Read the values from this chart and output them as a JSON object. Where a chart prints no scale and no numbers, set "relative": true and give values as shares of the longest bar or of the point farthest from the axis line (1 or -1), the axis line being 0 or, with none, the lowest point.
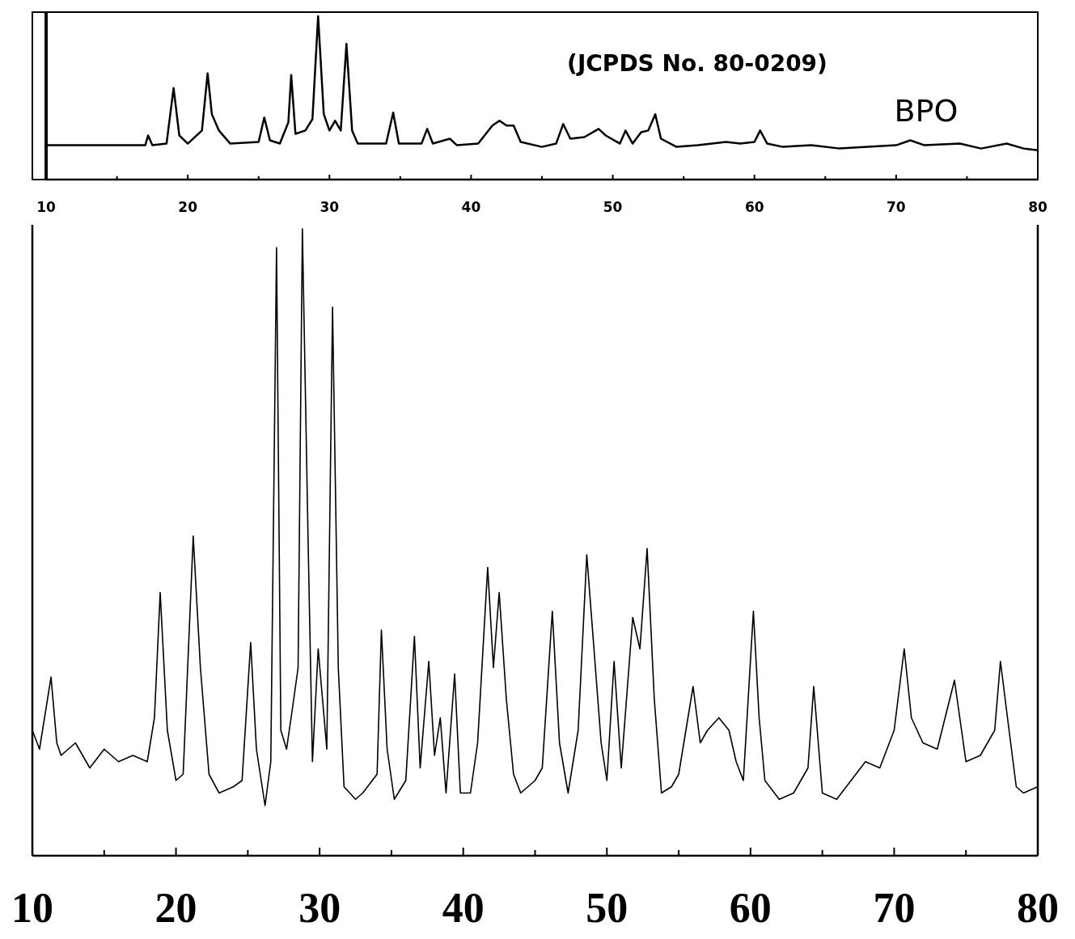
{
  "chart_data": [
    {
      "type": "line",
      "relative": true,
      "annotations": [
        "(JCPDS No. 80-0209)",
        "BPO"
      ],
      "xlim": [
        10,
        80
      ],
      "xticks": [
        10,
        {
          "value": 15,
          "label": null
        },
        20,
        {
          "value": 25,
          "label": null
        },
        30,
        {
          "value": 35,
          "label": null
        },
        40,
        {
          "value": 45,
          "label": null
        },
        50,
        {
          "value": 55,
          "label": null
        },
        60,
        {
          "value": 65,
          "label": null
        },
        70,
        {
          "value": 75,
          "label": null
        },
        80
      ],
      "tick_labels": "x",
      "grid": false,
      "marker": "none",
      "line_style": "solid",
      "series": [
        {
          "color": "#000000",
          "x": [
            10,
            17,
            17.2,
            17.5,
            18.5,
            19.0,
            19.4,
            20,
            21,
            21.4,
            21.7,
            22.2,
            23,
            25,
            25.4,
            25.8,
            26.5,
            27.1,
            27.3,
            27.6,
            28.3,
            28.8,
            29.2,
            29.6,
            30.0,
            30.4,
            30.8,
            31.2,
            31.6,
            32,
            34,
            34.5,
            34.9,
            36.5,
            36.9,
            37.3,
            38.5,
            39,
            40.5,
            41.5,
            42,
            42.5,
            43,
            43.5,
            45,
            46,
            46.5,
            47,
            48,
            49,
            49.5,
            50.5,
            50.9,
            51.4,
            52,
            52.5,
            53,
            53.4,
            54.5,
            56,
            57,
            58,
            59,
            60,
            60.4,
            60.9,
            62,
            64,
            66,
            68,
            70,
            71,
            72,
            74.5,
            76,
            77.8,
            79,
            80
          ],
          "values": [
            0.21,
            0.21,
            0.27,
            0.21,
            0.22,
            0.56,
            0.27,
            0.22,
            0.3,
            0.65,
            0.4,
            0.3,
            0.22,
            0.23,
            0.38,
            0.24,
            0.22,
            0.35,
            0.64,
            0.28,
            0.3,
            0.37,
            1.0,
            0.4,
            0.3,
            0.36,
            0.3,
            0.83,
            0.3,
            0.22,
            0.22,
            0.41,
            0.22,
            0.22,
            0.31,
            0.22,
            0.25,
            0.21,
            0.22,
            0.33,
            0.36,
            0.33,
            0.33,
            0.23,
            0.2,
            0.22,
            0.34,
            0.25,
            0.26,
            0.31,
            0.27,
            0.22,
            0.3,
            0.22,
            0.29,
            0.3,
            0.4,
            0.25,
            0.2,
            0.21,
            0.22,
            0.23,
            0.22,
            0.23,
            0.3,
            0.22,
            0.2,
            0.21,
            0.19,
            0.2,
            0.21,
            0.24,
            0.21,
            0.22,
            0.19,
            0.22,
            0.19,
            0.18
          ]
        }
      ]
    },
    {
      "type": "line",
      "relative": true,
      "xlim": [
        10,
        80
      ],
      "xticks": [
        10,
        {
          "value": 15,
          "label": null
        },
        20,
        {
          "value": 25,
          "label": null
        },
        30,
        {
          "value": 35,
          "label": null
        },
        40,
        {
          "value": 45,
          "label": null
        },
        50,
        {
          "value": 55,
          "label": null
        },
        60,
        {
          "value": 65,
          "label": null
        },
        70,
        {
          "value": 75,
          "label": null
        },
        80
      ],
      "tick_labels": "x",
      "grid": false,
      "marker": "none",
      "line_style": "solid",
      "series": [
        {
          "color": "#000000",
          "x": [
            10,
            10.5,
            11.3,
            11.7,
            12,
            13,
            14,
            15,
            16,
            17,
            18,
            18.5,
            18.9,
            19.4,
            20,
            20.5,
            21.2,
            21.7,
            22.3,
            23,
            24,
            24.6,
            25.2,
            25.6,
            26.2,
            26.6,
            27.0,
            27.3,
            27.7,
            28.2,
            28.5,
            28.8,
            29.2,
            29.5,
            29.9,
            30.2,
            30.5,
            30.9,
            31.3,
            31.7,
            32.5,
            33,
            34,
            34.3,
            34.7,
            35.2,
            36,
            36.6,
            37,
            37.6,
            38,
            38.4,
            38.8,
            39.4,
            39.8,
            40.5,
            41,
            41.7,
            42.1,
            42.5,
            43,
            43.5,
            44,
            45,
            45.5,
            46.2,
            46.7,
            47.3,
            48,
            48.6,
            49.2,
            49.6,
            50,
            50.5,
            51,
            51.8,
            52.3,
            52.8,
            53.3,
            53.8,
            54.5,
            55,
            56,
            56.5,
            57,
            57.8,
            58.5,
            59,
            59.5,
            60.2,
            60.6,
            61,
            62,
            63,
            64,
            64.4,
            65,
            66,
            67,
            68,
            69,
            70,
            70.7,
            71.2,
            72,
            73,
            74.2,
            75,
            76,
            77,
            77.4,
            78,
            78.5,
            79,
            80
          ],
          "values": [
            0.2,
            0.17,
            0.285,
            0.18,
            0.16,
            0.18,
            0.14,
            0.17,
            0.15,
            0.16,
            0.15,
            0.22,
            0.42,
            0.2,
            0.12,
            0.13,
            0.51,
            0.3,
            0.13,
            0.1,
            0.11,
            0.12,
            0.34,
            0.17,
            0.08,
            0.15,
            0.97,
            0.2,
            0.17,
            0.25,
            0.3,
            1.0,
            0.5,
            0.15,
            0.33,
            0.25,
            0.17,
            0.875,
            0.3,
            0.11,
            0.09,
            0.1,
            0.13,
            0.36,
            0.17,
            0.09,
            0.12,
            0.35,
            0.14,
            0.31,
            0.16,
            0.22,
            0.1,
            0.29,
            0.1,
            0.1,
            0.18,
            0.46,
            0.3,
            0.42,
            0.25,
            0.13,
            0.1,
            0.12,
            0.14,
            0.39,
            0.18,
            0.1,
            0.2,
            0.48,
            0.3,
            0.18,
            0.12,
            0.31,
            0.14,
            0.38,
            0.33,
            0.49,
            0.25,
            0.1,
            0.11,
            0.13,
            0.27,
            0.18,
            0.2,
            0.22,
            0.2,
            0.15,
            0.12,
            0.39,
            0.22,
            0.12,
            0.09,
            0.1,
            0.14,
            0.27,
            0.1,
            0.09,
            0.12,
            0.15,
            0.14,
            0.2,
            0.33,
            0.22,
            0.18,
            0.17,
            0.28,
            0.15,
            0.16,
            0.2,
            0.31,
            0.2,
            0.11,
            0.1,
            0.11
          ]
        }
      ]
    }
  ]
}
